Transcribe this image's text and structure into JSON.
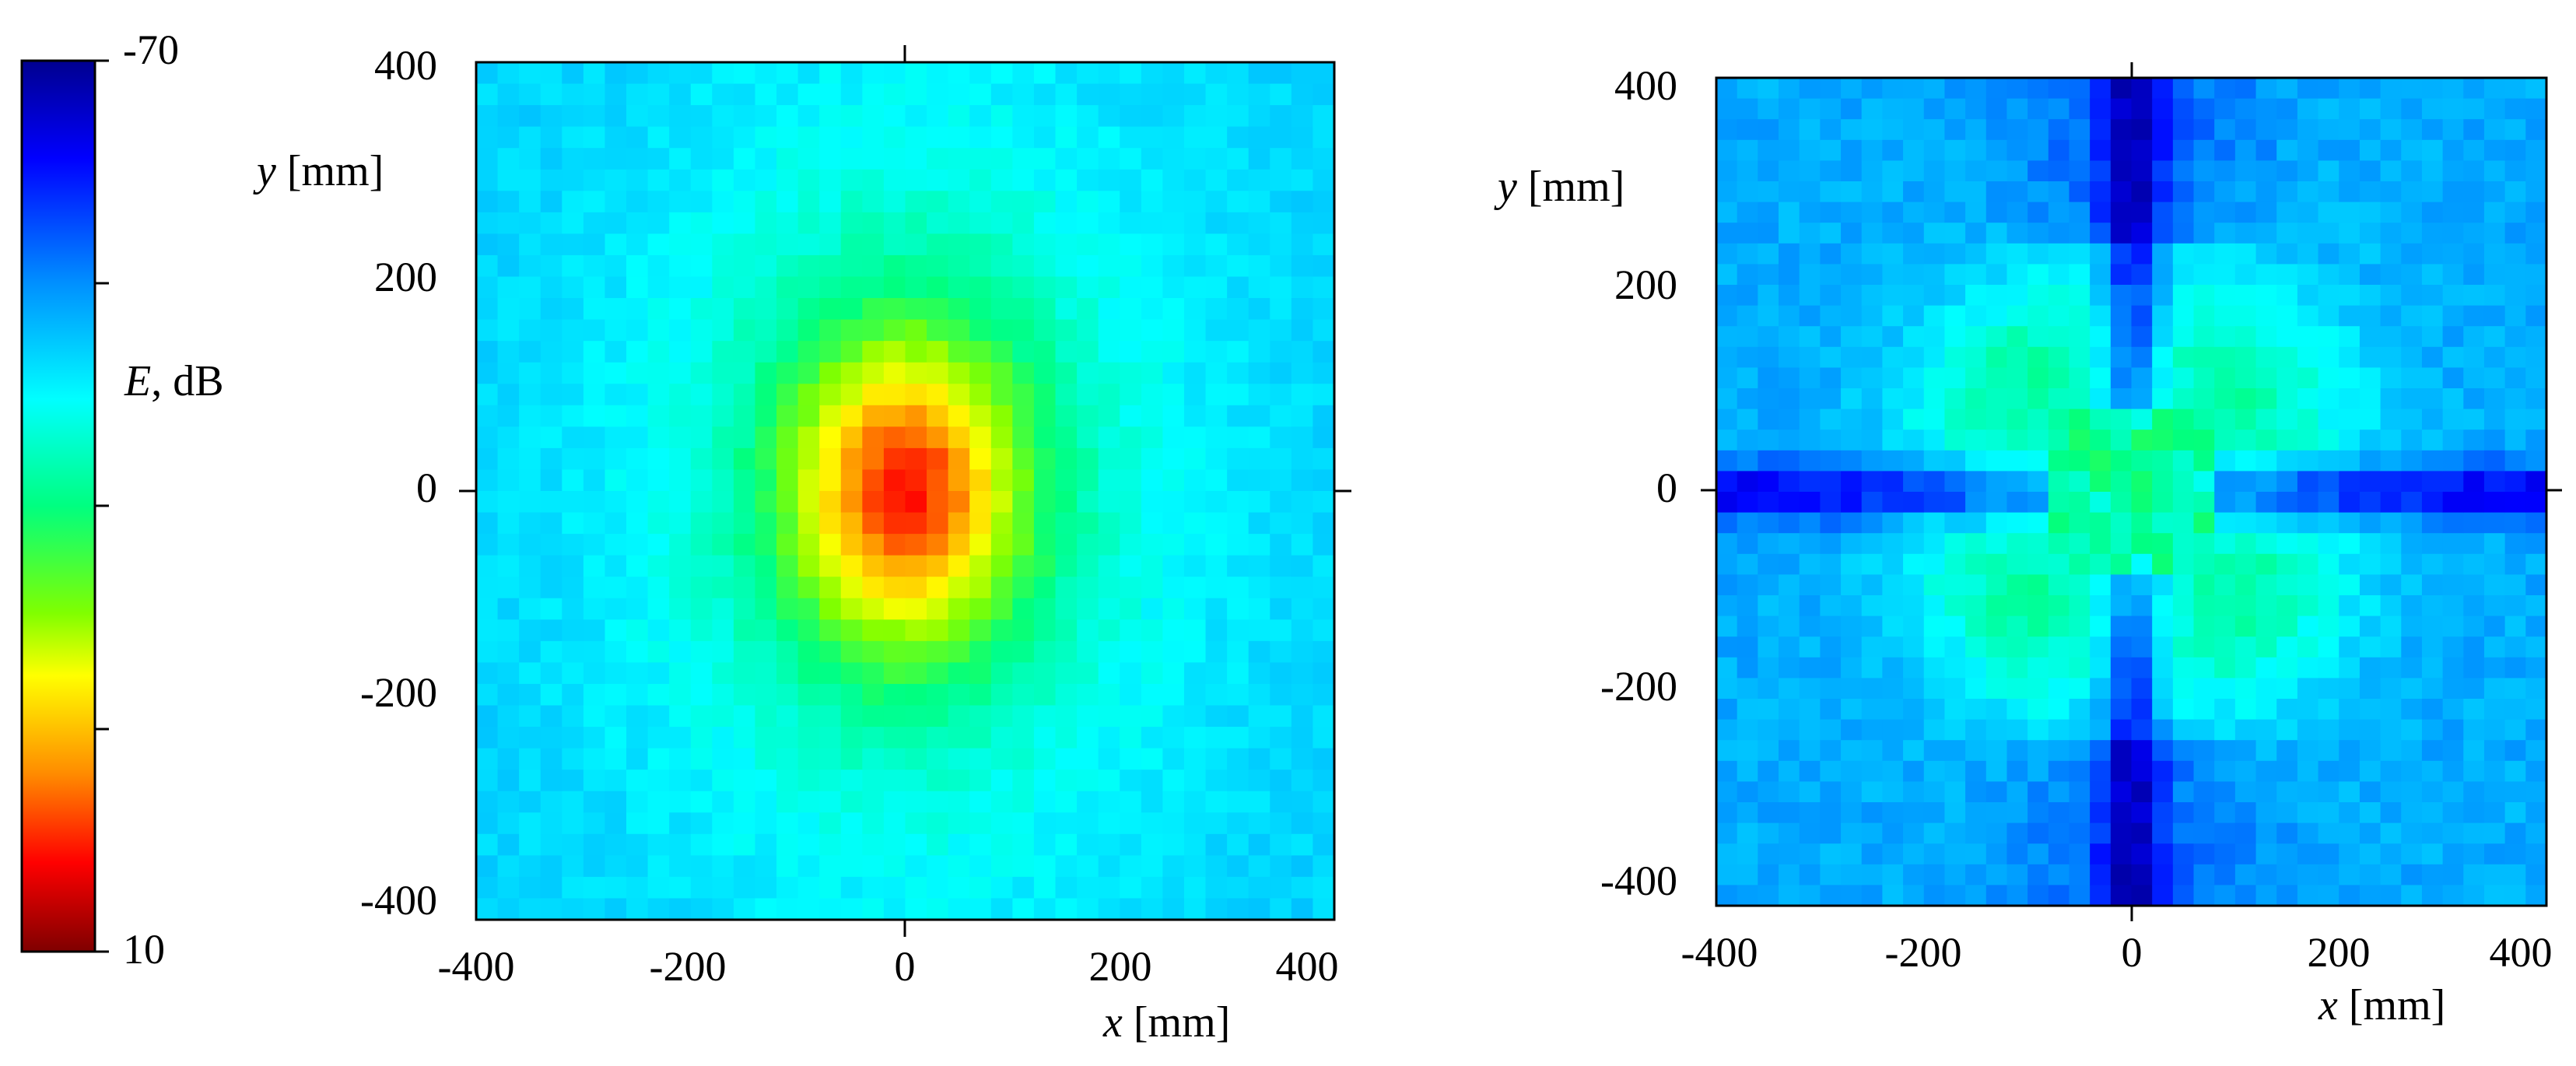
{
  "colorbar": {
    "max_label": "-70",
    "min_label": "10",
    "range": [
      10,
      -70
    ],
    "label_var": "E",
    "label_unit": ", dB",
    "tick_values": [
      -70,
      -50,
      -30,
      -10,
      10
    ],
    "colormap": [
      "#7f0000",
      "#ff0000",
      "#ff8c00",
      "#ffff00",
      "#80ff00",
      "#00ff80",
      "#00ffff",
      "#0090ff",
      "#0000ff",
      "#00008f"
    ]
  },
  "chart_data": [
    {
      "type": "heatmap",
      "xlabel_var": "x",
      "xlabel_unit": " [mm]",
      "ylabel_var": "y",
      "ylabel_unit": " [mm]",
      "xlim": [
        -400,
        400
      ],
      "ylim": [
        -400,
        400
      ],
      "xticks": [
        "-400",
        "-200",
        "0",
        "200",
        "400"
      ],
      "yticks": [
        "400",
        "200",
        "0",
        "-200",
        "-400"
      ],
      "value_unit": "dB",
      "description_values": {
        "peak_at": [
          0,
          0
        ],
        "peak_value": 0,
        "background_value": -47
      }
    },
    {
      "type": "heatmap",
      "xlabel_var": "x",
      "xlabel_unit": " [mm]",
      "ylabel_var": "y",
      "ylabel_unit": " [mm]",
      "xlim": [
        -400,
        400
      ],
      "ylim": [
        -400,
        400
      ],
      "xticks": [
        "-400",
        "-200",
        "0",
        "200",
        "400"
      ],
      "yticks": [
        "400",
        "200",
        "0",
        "-200",
        "-400"
      ],
      "value_unit": "dB",
      "description_values": {
        "lobe_value": -37,
        "null_axes_value": -62,
        "background_value": -50
      }
    }
  ]
}
